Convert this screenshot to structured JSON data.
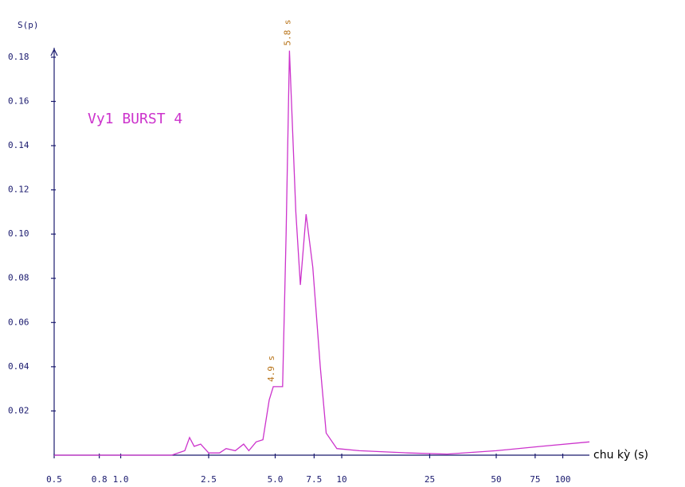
{
  "chart_data": {
    "type": "line",
    "title": "Vy1 BURST 4",
    "y_label": "S(p)",
    "x_label": "chu kỳ (s)",
    "log_x": true,
    "xlim": [
      0.5,
      132
    ],
    "ylim": [
      0,
      0.185
    ],
    "xticks": [
      0.5,
      0.8,
      {
        "value": 1,
        "label": "1.0"
      },
      2.5,
      {
        "value": 5,
        "label": "5.0"
      },
      7.5,
      10,
      25,
      50,
      75,
      100
    ],
    "yticks": [
      0.02,
      0.04,
      0.06,
      0.08,
      {
        "value": 0.1,
        "label": "0.10"
      },
      0.12,
      0.14,
      0.16,
      0.18
    ],
    "series": [
      {
        "name": "Vy1 BURST 4",
        "color": "#cc33cc",
        "x": [
          0.5,
          1.7,
          1.95,
          2.05,
          2.15,
          2.3,
          2.5,
          2.8,
          3.0,
          3.3,
          3.6,
          3.8,
          4.1,
          4.4,
          4.7,
          4.9,
          5.2,
          5.4,
          5.6,
          5.8,
          6.2,
          6.5,
          6.9,
          7.4,
          8.0,
          8.5,
          9.5,
          12,
          20,
          30,
          50,
          80,
          132
        ],
        "values": [
          0,
          0,
          0.002,
          0.008,
          0.004,
          0.005,
          0.001,
          0.001,
          0.003,
          0.002,
          0.005,
          0.002,
          0.006,
          0.007,
          0.025,
          0.031,
          0.031,
          0.031,
          0.1,
          0.183,
          0.11,
          0.077,
          0.109,
          0.085,
          0.04,
          0.01,
          0.003,
          0.002,
          0.001,
          0.0005,
          0.002,
          0.004,
          0.006
        ]
      }
    ],
    "annotations": [
      {
        "text": "5.8 s",
        "x": 5.8,
        "y": 0.183,
        "color": "#b8741a"
      },
      {
        "text": "4.9 s",
        "x": 4.9,
        "y": 0.031,
        "color": "#b8741a"
      }
    ]
  }
}
